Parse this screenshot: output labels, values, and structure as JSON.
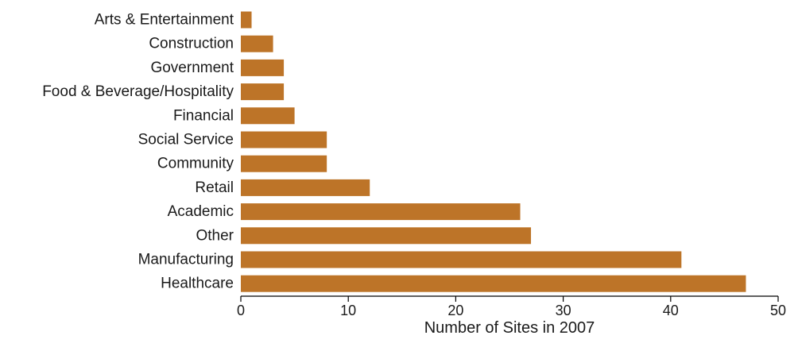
{
  "chart_data": {
    "type": "bar",
    "orientation": "horizontal",
    "title": "",
    "xlabel": "Number of Sites in 2007",
    "ylabel": "",
    "categories": [
      "Arts & Entertainment",
      "Construction",
      "Government",
      "Food & Beverage/Hospitality",
      "Financial",
      "Social Service",
      "Community",
      "Retail",
      "Academic",
      "Other",
      "Manufacturing",
      "Healthcare"
    ],
    "values": [
      1,
      3,
      4,
      4,
      5,
      8,
      8,
      12,
      26,
      27,
      41,
      47
    ],
    "xlim": [
      0,
      50
    ],
    "xticks": [
      0,
      10,
      20,
      30,
      40,
      50
    ],
    "grid": false,
    "legend": "none",
    "bar_color": "#BD7428"
  }
}
